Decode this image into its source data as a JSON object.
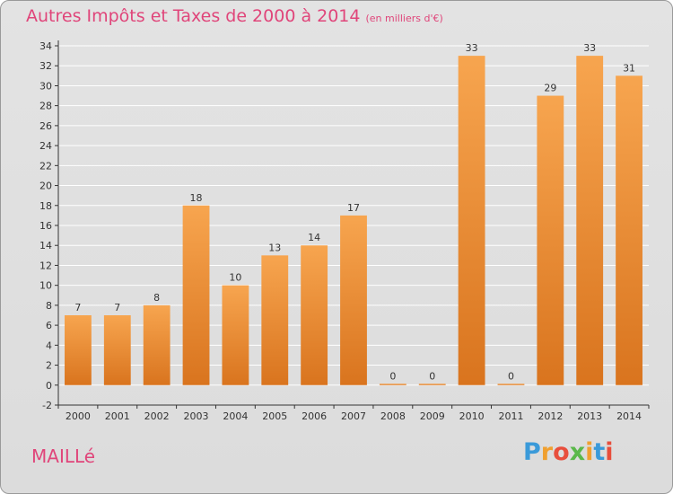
{
  "header": {
    "title": "Autres Impôts et Taxes de 2000 à 2014",
    "unit": "(en milliers d'€)"
  },
  "footer": {
    "commune": "MAILLé",
    "logo": [
      "P",
      "r",
      "o",
      "x",
      "i",
      "t",
      "i"
    ],
    "logo_colors": [
      "#3a9ad9",
      "#f0a030",
      "#e84e3c",
      "#5ab84a",
      "#f0a030",
      "#3a9ad9",
      "#e84e3c"
    ]
  },
  "chart_data": {
    "type": "bar",
    "categories": [
      "2000",
      "2001",
      "2002",
      "2003",
      "2004",
      "2005",
      "2006",
      "2007",
      "2008",
      "2009",
      "2010",
      "2011",
      "2012",
      "2013",
      "2014"
    ],
    "values": [
      7,
      7,
      8,
      18,
      10,
      13,
      14,
      17,
      0,
      0,
      33,
      0,
      29,
      33,
      31
    ],
    "ylim": [
      -2,
      34
    ],
    "yticks": [
      -2,
      0,
      2,
      4,
      6,
      8,
      10,
      12,
      14,
      16,
      18,
      20,
      22,
      24,
      26,
      28,
      30,
      32,
      34
    ],
    "grid": true,
    "colors": {
      "bar_top": "#f7a54f",
      "bar_bottom": "#d9741e",
      "grid": "#ffffff",
      "axis": "#333333"
    }
  }
}
